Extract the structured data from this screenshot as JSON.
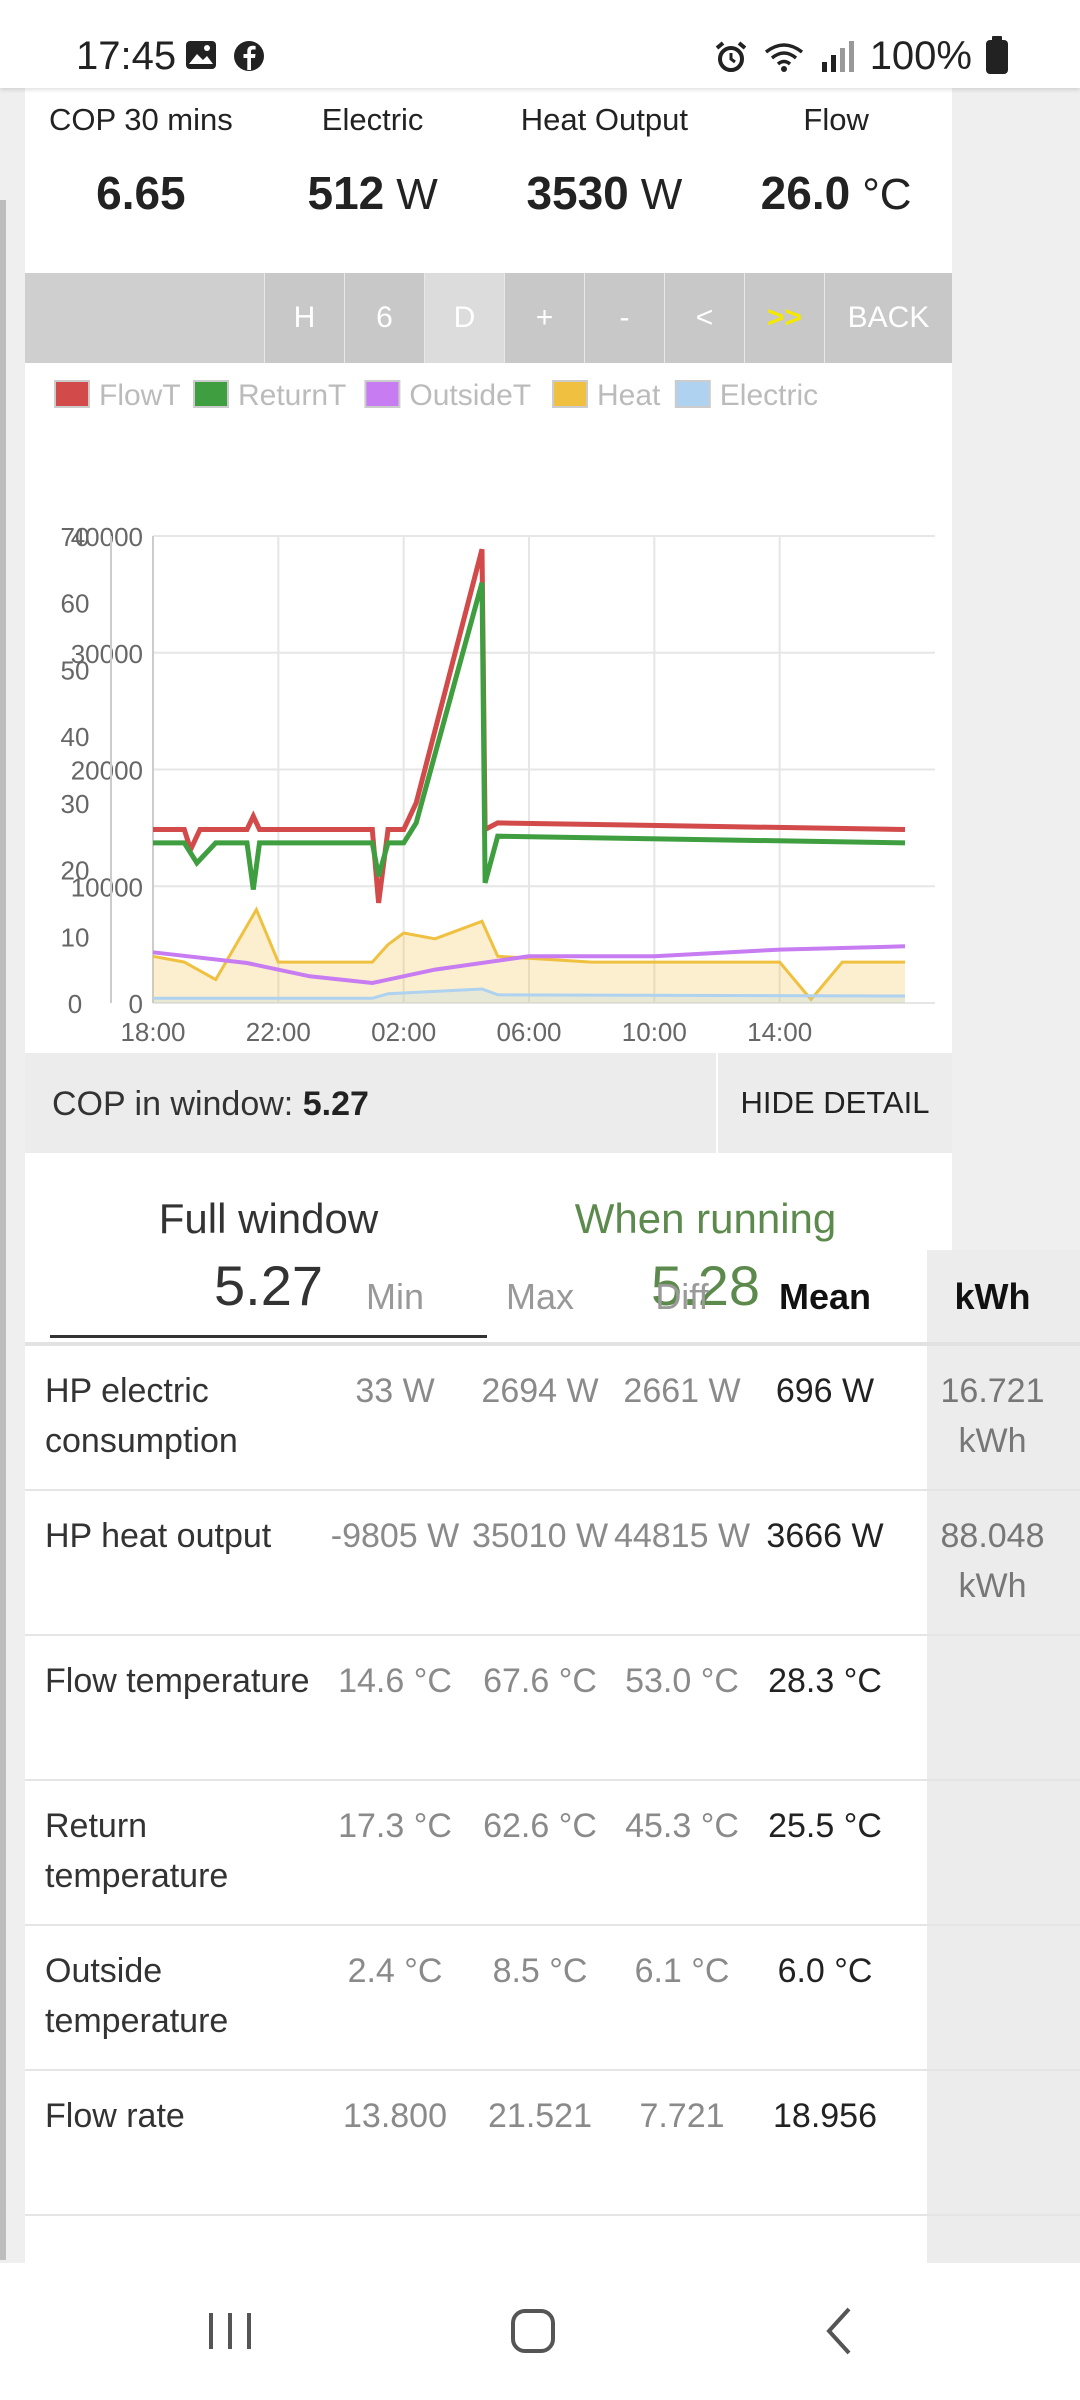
{
  "status_bar": {
    "time": "17:45",
    "battery": "100%",
    "icons": [
      "gallery-icon",
      "facebook-icon",
      "alarm-icon",
      "wifi-icon",
      "signal-icon",
      "battery-icon"
    ]
  },
  "stats": [
    {
      "label": "COP 30 mins",
      "value": "6.65",
      "unit": ""
    },
    {
      "label": "Electric",
      "value": "512",
      "unit": "W"
    },
    {
      "label": "Heat Output",
      "value": "3530",
      "unit": "W"
    },
    {
      "label": "Flow",
      "value": "26.0",
      "unit": "°C"
    }
  ],
  "toolbar": {
    "buttons": [
      "H",
      "6",
      "D",
      "+",
      "-",
      "<",
      ">>",
      "BACK"
    ],
    "active": "D",
    "highlight": ">>"
  },
  "chart_data": {
    "type": "line",
    "legend": [
      {
        "name": "FlowT",
        "color": "#d24a4a"
      },
      {
        "name": "ReturnT",
        "color": "#3f9e3f"
      },
      {
        "name": "OutsideT",
        "color": "#c77cf2"
      },
      {
        "name": "Heat",
        "color": "#f0c040"
      },
      {
        "name": "Electric",
        "color": "#aed2ef"
      }
    ],
    "y_left_ticks": [
      "70",
      "60",
      "50",
      "40",
      "30",
      "20",
      "10",
      "0"
    ],
    "y_right_ticks": [
      "40000",
      "30000",
      "20000",
      "10000",
      "0"
    ],
    "x_ticks": [
      "18:00",
      "22:00",
      "02:00",
      "06:00",
      "10:00",
      "14:00"
    ],
    "ylim_left": [
      0,
      70
    ],
    "ylim_right": [
      0,
      40000
    ],
    "x_hours": [
      0,
      24
    ],
    "series": [
      {
        "name": "FlowT",
        "axis": "left",
        "points": [
          [
            0,
            26
          ],
          [
            1,
            26
          ],
          [
            1.2,
            23
          ],
          [
            1.5,
            26
          ],
          [
            3,
            26
          ],
          [
            3.2,
            28
          ],
          [
            3.4,
            26
          ],
          [
            7,
            26
          ],
          [
            7.2,
            15
          ],
          [
            7.5,
            26
          ],
          [
            8,
            26
          ],
          [
            8.4,
            30
          ],
          [
            10.5,
            68
          ],
          [
            10.6,
            26
          ],
          [
            11,
            27
          ],
          [
            24,
            26
          ]
        ]
      },
      {
        "name": "ReturnT",
        "axis": "left",
        "points": [
          [
            0,
            24
          ],
          [
            1,
            24
          ],
          [
            1.4,
            21
          ],
          [
            2,
            24
          ],
          [
            3,
            24
          ],
          [
            3.2,
            17
          ],
          [
            3.4,
            24
          ],
          [
            7,
            24
          ],
          [
            7.2,
            19
          ],
          [
            7.5,
            24
          ],
          [
            8,
            24
          ],
          [
            8.4,
            27
          ],
          [
            10.5,
            63
          ],
          [
            10.6,
            18
          ],
          [
            11,
            25
          ],
          [
            24,
            24
          ]
        ]
      },
      {
        "name": "OutsideT",
        "axis": "left",
        "points": [
          [
            0,
            7.6
          ],
          [
            3,
            6
          ],
          [
            5,
            4
          ],
          [
            7,
            3
          ],
          [
            9,
            5
          ],
          [
            12,
            7
          ],
          [
            16,
            7
          ],
          [
            20,
            8
          ],
          [
            24,
            8.5
          ]
        ]
      },
      {
        "name": "Heat",
        "axis": "right",
        "points": [
          [
            0,
            4000
          ],
          [
            1,
            3500
          ],
          [
            2,
            2000
          ],
          [
            3.3,
            8000
          ],
          [
            4,
            3500
          ],
          [
            7,
            3500
          ],
          [
            7.5,
            5000
          ],
          [
            8,
            6000
          ],
          [
            9,
            5500
          ],
          [
            10.5,
            7000
          ],
          [
            11,
            4000
          ],
          [
            14,
            3500
          ],
          [
            20,
            3500
          ],
          [
            21,
            300
          ],
          [
            22,
            3500
          ],
          [
            24,
            3500
          ]
        ]
      },
      {
        "name": "Electric",
        "axis": "right",
        "points": [
          [
            0,
            400
          ],
          [
            7,
            400
          ],
          [
            7.5,
            800
          ],
          [
            10.5,
            1200
          ],
          [
            11,
            700
          ],
          [
            24,
            600
          ]
        ]
      }
    ]
  },
  "cop_bar": {
    "label": "COP in window:",
    "value": "5.27",
    "hide_button": "HIDE DETAIL"
  },
  "tabs": [
    {
      "label": "Full window",
      "value": "5.27"
    },
    {
      "label": "When running",
      "value": "5.28"
    }
  ],
  "table": {
    "headers": [
      "",
      "Min",
      "Max",
      "Diff",
      "Mean",
      "kWh"
    ],
    "rows": [
      {
        "label": "HP electric consumption",
        "min": "33 W",
        "max": "2694 W",
        "diff": "2661 W",
        "mean": "696 W",
        "kwh": "16.721 kWh"
      },
      {
        "label": "HP heat output",
        "min": "-9805 W",
        "max": "35010 W",
        "diff": "44815 W",
        "mean": "3666 W",
        "kwh": "88.048 kWh"
      },
      {
        "label": "Flow temperature",
        "min": "14.6 °C",
        "max": "67.6 °C",
        "diff": "53.0 °C",
        "mean": "28.3 °C",
        "kwh": ""
      },
      {
        "label": "Return temperature",
        "min": "17.3 °C",
        "max": "62.6 °C",
        "diff": "45.3 °C",
        "mean": "25.5 °C",
        "kwh": ""
      },
      {
        "label": "Outside temperature",
        "min": "2.4 °C",
        "max": "8.5 °C",
        "diff": "6.1 °C",
        "mean": "6.0 °C",
        "kwh": ""
      },
      {
        "label": "Flow rate",
        "min": "13.800",
        "max": "21.521",
        "diff": "7.721",
        "mean": "18.956",
        "kwh": ""
      }
    ]
  },
  "nav": [
    "recents-icon",
    "home-icon",
    "back-icon"
  ]
}
